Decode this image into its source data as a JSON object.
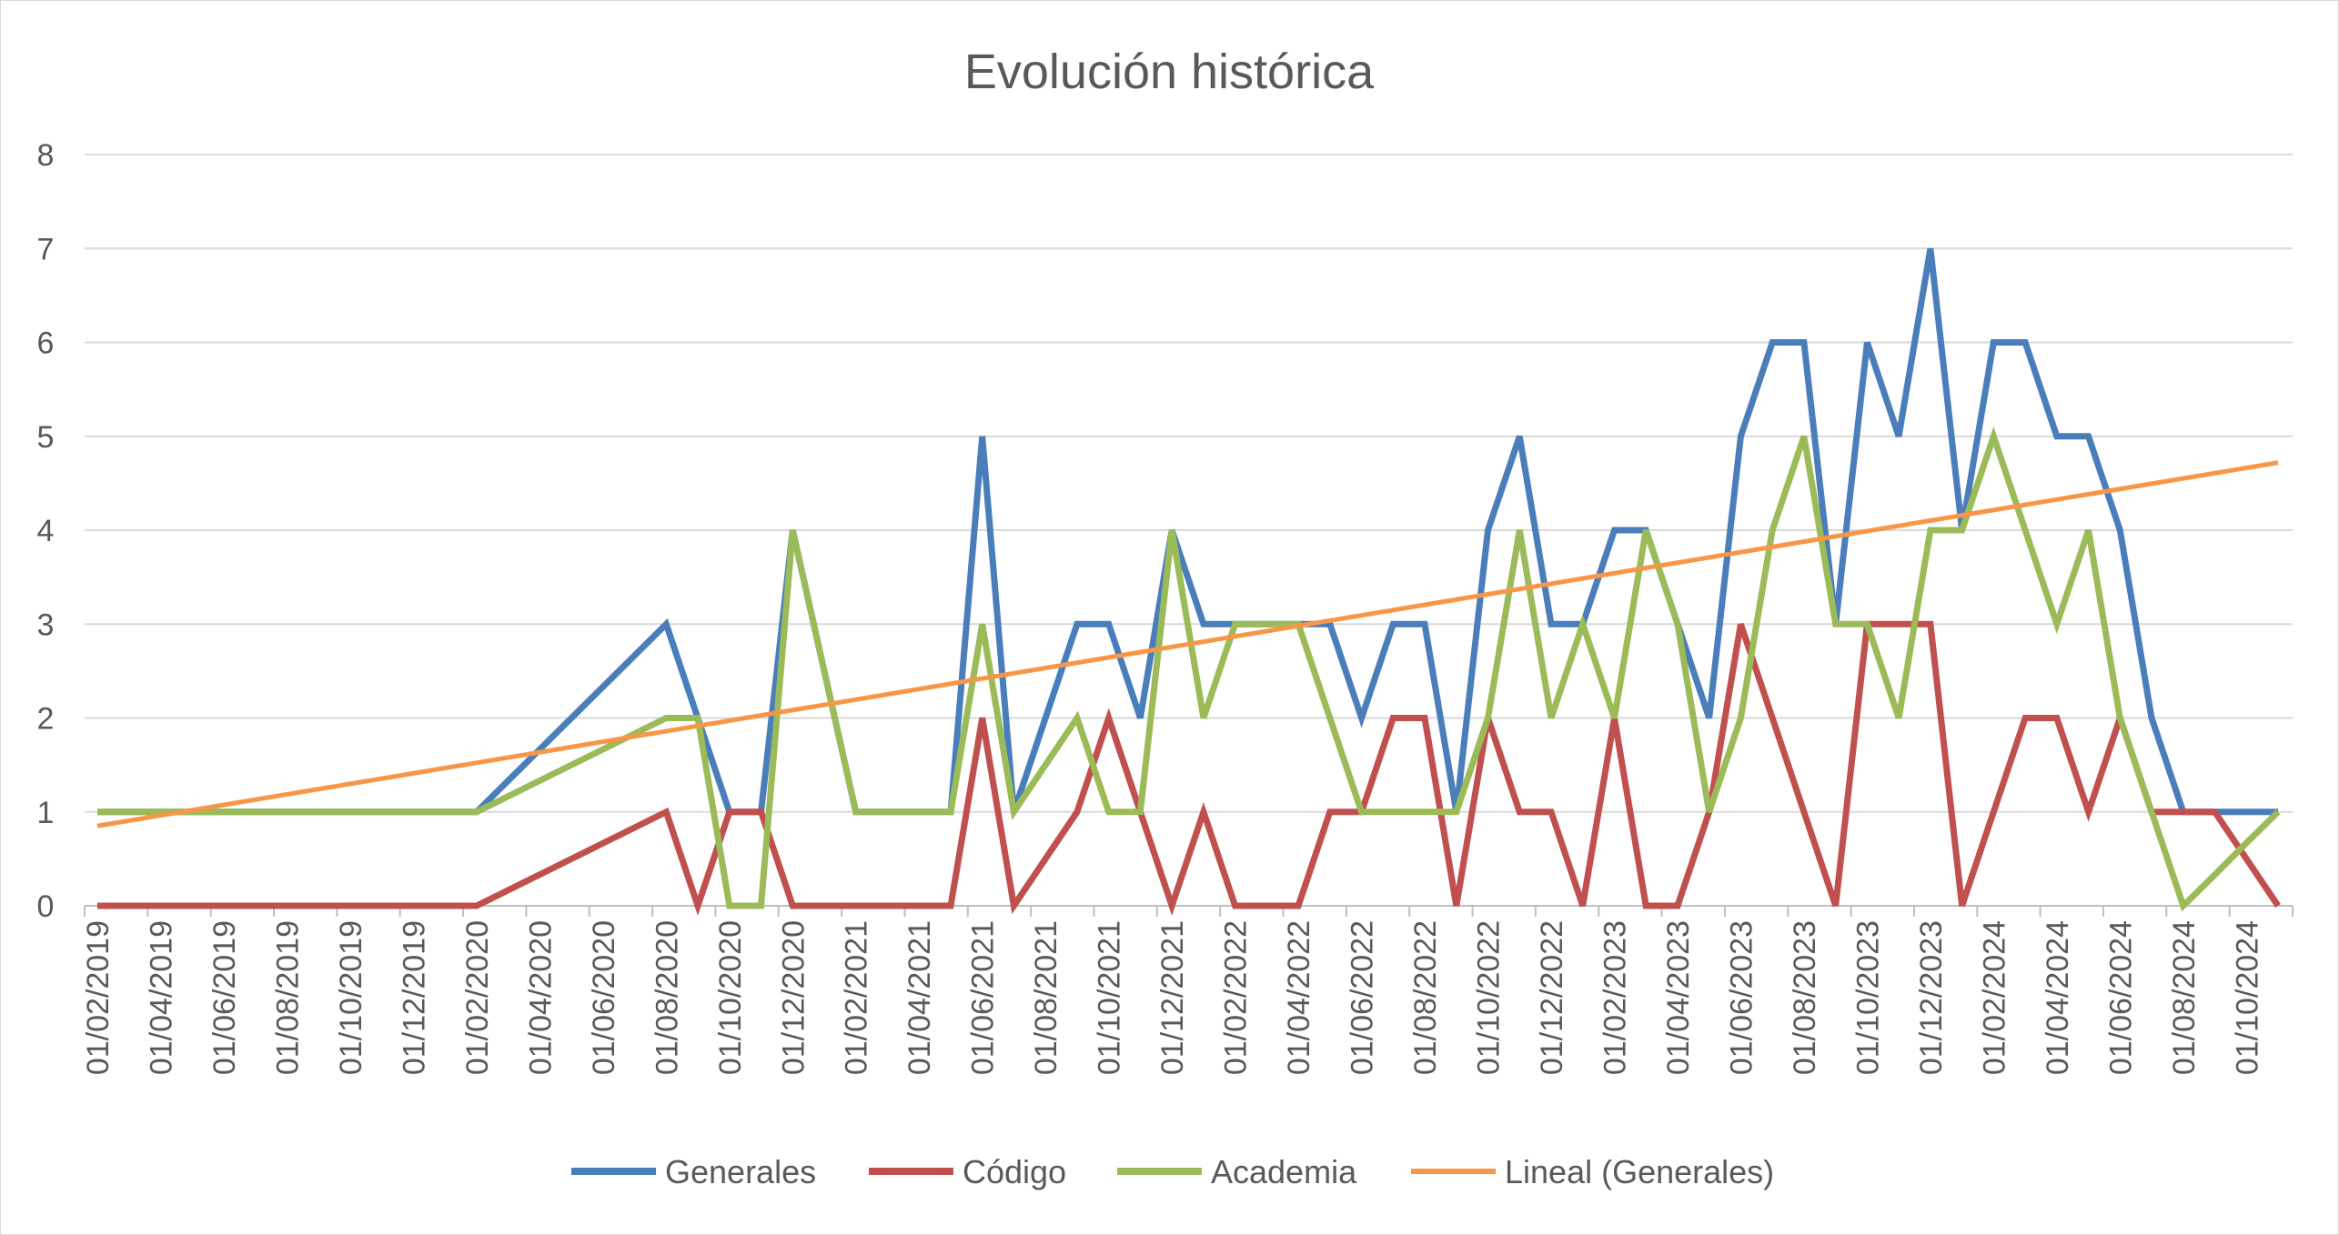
{
  "chart_data": {
    "type": "line",
    "title": "Evolución histórica",
    "xlabel": "",
    "ylabel": "",
    "ylim": [
      0,
      8
    ],
    "y_ticks": [
      "0",
      "1",
      "2",
      "3",
      "4",
      "5",
      "6",
      "7",
      "8"
    ],
    "grid": true,
    "legend_position": "bottom",
    "x_tick_labels": [
      "01/02/2019",
      "01/04/2019",
      "01/06/2019",
      "01/08/2019",
      "01/10/2019",
      "01/12/2019",
      "01/02/2020",
      "01/04/2020",
      "01/06/2020",
      "01/08/2020",
      "01/10/2020",
      "01/12/2020",
      "01/02/2021",
      "01/04/2021",
      "01/06/2021",
      "01/08/2021",
      "01/10/2021",
      "01/12/2021",
      "01/02/2022",
      "01/04/2022",
      "01/06/2022",
      "01/08/2022",
      "01/10/2022",
      "01/12/2022",
      "01/02/2023",
      "01/04/2023",
      "01/06/2023",
      "01/08/2023",
      "01/10/2023",
      "01/12/2023",
      "01/02/2024",
      "01/04/2024",
      "01/06/2024",
      "01/08/2024",
      "01/10/2024"
    ],
    "x": [
      "01/02/2019",
      "01/02/2020",
      "01/08/2020",
      "01/09/2020",
      "01/10/2020",
      "01/11/2020",
      "01/12/2020",
      "01/02/2021",
      "01/05/2021",
      "01/06/2021",
      "01/07/2021",
      "01/09/2021",
      "01/10/2021",
      "01/11/2021",
      "01/12/2021",
      "01/01/2022",
      "01/02/2022",
      "01/03/2022",
      "01/04/2022",
      "01/05/2022",
      "01/06/2022",
      "01/07/2022",
      "01/08/2022",
      "01/09/2022",
      "01/10/2022",
      "01/11/2022",
      "01/12/2022",
      "01/01/2023",
      "01/02/2023",
      "01/03/2023",
      "01/04/2023",
      "01/05/2023",
      "01/06/2023",
      "01/07/2023",
      "01/08/2023",
      "01/09/2023",
      "01/10/2023",
      "01/11/2023",
      "01/12/2023",
      "01/01/2024",
      "01/02/2024",
      "01/03/2024",
      "01/04/2024",
      "01/05/2024",
      "01/06/2024",
      "01/07/2024",
      "01/08/2024",
      "01/09/2024",
      "01/10/2024",
      "01/11/2024"
    ],
    "series": [
      {
        "name": "Generales",
        "color": "#4a7ebb",
        "values": [
          1,
          1,
          3,
          2,
          1,
          1,
          4,
          1,
          1,
          5,
          1,
          3,
          3,
          2,
          4,
          3,
          3,
          3,
          3,
          3,
          2,
          3,
          3,
          1,
          4,
          5,
          3,
          3,
          4,
          4,
          3,
          2,
          5,
          6,
          6,
          3,
          6,
          5,
          7,
          4,
          6,
          6,
          5,
          5,
          4,
          2,
          1,
          1,
          1,
          1
        ]
      },
      {
        "name": "Código",
        "color": "#c0504d",
        "values": [
          0,
          0,
          1,
          0,
          1,
          1,
          0,
          0,
          0,
          2,
          0,
          1,
          2,
          1,
          0,
          1,
          0,
          0,
          0,
          1,
          1,
          2,
          2,
          0,
          2,
          1,
          1,
          0,
          2,
          0,
          0,
          1,
          3,
          2,
          1,
          0,
          3,
          3,
          3,
          0,
          1,
          2,
          2,
          1,
          2,
          1,
          1,
          1,
          0.5,
          0
        ]
      },
      {
        "name": "Academia",
        "color": "#9bbb59",
        "values": [
          1,
          1,
          2,
          2,
          0,
          0,
          4,
          1,
          1,
          3,
          1,
          2,
          1,
          1,
          4,
          2,
          3,
          3,
          3,
          2,
          1,
          1,
          1,
          1,
          2,
          4,
          2,
          3,
          2,
          4,
          3,
          1,
          2,
          4,
          5,
          3,
          3,
          2,
          4,
          4,
          5,
          4,
          3,
          4,
          2,
          1,
          0,
          0.33,
          0.67,
          1
        ]
      },
      {
        "name": "Lineal (Generales)",
        "color": "#f79646",
        "trend": true,
        "start": 0.85,
        "end": 4.72
      }
    ]
  }
}
